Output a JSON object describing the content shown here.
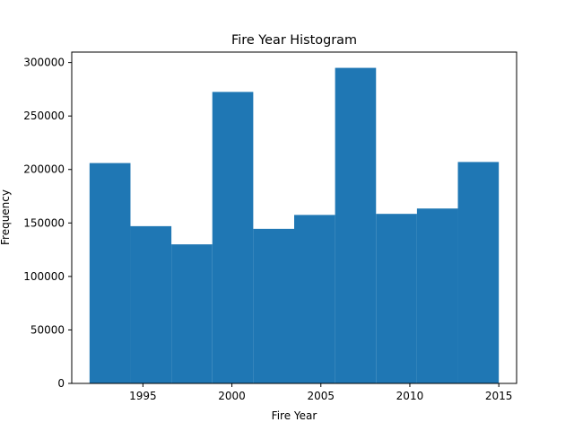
{
  "chart_data": {
    "type": "bar",
    "title": "Fire Year Histogram",
    "xlabel": "Fire Year",
    "ylabel": "Frequency",
    "bin_edges": [
      1992,
      1994.3,
      1996.6,
      1998.9,
      2001.2,
      2003.5,
      2005.8,
      2008.1,
      2010.4,
      2012.7,
      2015
    ],
    "values": [
      206000,
      147000,
      130000,
      272500,
      144500,
      157500,
      295000,
      158500,
      163500,
      207000
    ],
    "xlim": [
      1991,
      2016
    ],
    "ylim": [
      0,
      309750
    ],
    "xticks": [
      1995,
      2000,
      2005,
      2010,
      2015
    ],
    "xtick_labels": [
      "1995",
      "2000",
      "2005",
      "2010",
      "2015"
    ],
    "yticks": [
      0,
      50000,
      100000,
      150000,
      200000,
      250000,
      300000
    ],
    "ytick_labels": [
      "0",
      "50000",
      "100000",
      "150000",
      "200000",
      "250000",
      "300000"
    ],
    "bar_color": "#1f77b4",
    "grid": false,
    "legend": "none"
  }
}
